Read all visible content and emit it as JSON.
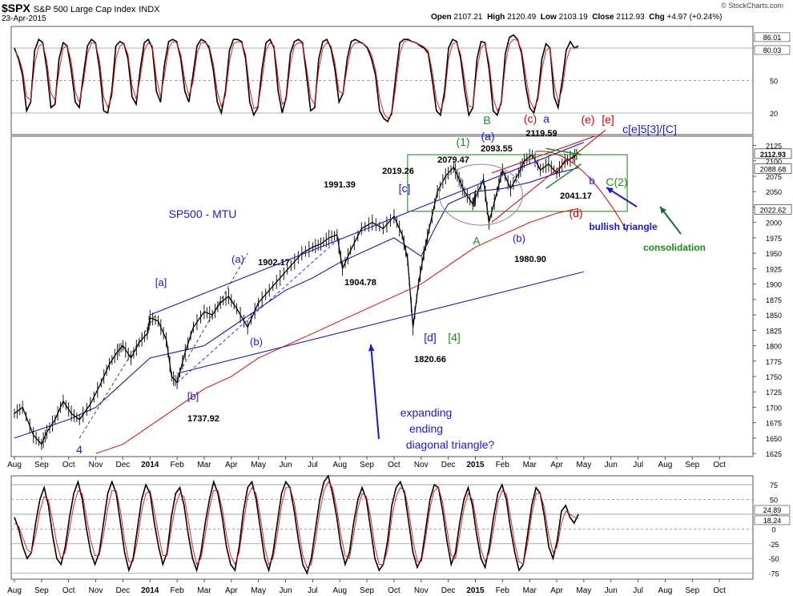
{
  "header": {
    "symbol": "$SPX",
    "description": "S&P 500 Large Cap Index",
    "exchange": "INDX",
    "date": "23-Apr-2015",
    "ohlc": {
      "open": "2107.21",
      "high": "2120.49",
      "low": "2103.19",
      "close": "2112.93",
      "change": "+4.97 (+0.24%)"
    },
    "ohlc_labels": {
      "open": "Open",
      "high": "High",
      "low": "Low",
      "close": "Close",
      "change": "Chg"
    },
    "brand": "© StockCharts.com"
  },
  "colors": {
    "price": "#000000",
    "ma_short": "#1a1aa6",
    "ma_long": "#dd2222",
    "wave_blue": "#1a1acc",
    "wave_green": "#1a8a1a",
    "wave_red": "#cc0000",
    "box": "#2a8a2a",
    "circle": "#888888"
  },
  "chart_data": [
    {
      "type": "line",
      "name": "top-oscillator",
      "ylim": [
        0,
        100
      ],
      "y_ticks": [
        20,
        50,
        80
      ],
      "value_tags": [
        "86.01",
        "80.03"
      ],
      "series": [
        {
          "name": "",
          "color": "#000000",
          "values": [
            80,
            70,
            55,
            22,
            30,
            78,
            88,
            85,
            60,
            25,
            28,
            70,
            85,
            82,
            60,
            30,
            25,
            55,
            82,
            88,
            85,
            60,
            22,
            20,
            40,
            82,
            86,
            84,
            70,
            35,
            28,
            60,
            85,
            88,
            80,
            40,
            30,
            65,
            86,
            88,
            86,
            70,
            40,
            30,
            55,
            82,
            88,
            86,
            80,
            60,
            30,
            20,
            40,
            78,
            88,
            88,
            86,
            70,
            30,
            18,
            25,
            60,
            85,
            88,
            80,
            40,
            20,
            35,
            75,
            86,
            88,
            85,
            55,
            22,
            25,
            70,
            86,
            88,
            80,
            60,
            30,
            38,
            70,
            86,
            88,
            86,
            84,
            80,
            70,
            55,
            22,
            15,
            12,
            20,
            55,
            85,
            88,
            88,
            86,
            85,
            82,
            80,
            75,
            50,
            22,
            18,
            40,
            80,
            88,
            86,
            70,
            40,
            18,
            25,
            70,
            86,
            85,
            60,
            22,
            18,
            30,
            75,
            90,
            92,
            88,
            75,
            45,
            25,
            20,
            35,
            70,
            84,
            80,
            35,
            25,
            50,
            78,
            86,
            80,
            82
          ]
        },
        {
          "name": "",
          "color": "#dd2222",
          "values": [
            78,
            72,
            60,
            35,
            32,
            65,
            82,
            84,
            68,
            38,
            32,
            58,
            80,
            82,
            68,
            40,
            30,
            48,
            75,
            85,
            84,
            68,
            35,
            25,
            35,
            70,
            82,
            84,
            74,
            45,
            33,
            52,
            78,
            85,
            82,
            52,
            35,
            55,
            80,
            86,
            85,
            74,
            50,
            36,
            48,
            75,
            85,
            85,
            82,
            66,
            40,
            26,
            36,
            68,
            84,
            86,
            85,
            74,
            42,
            24,
            26,
            50,
            78,
            85,
            82,
            52,
            28,
            32,
            65,
            82,
            85,
            84,
            62,
            34,
            28,
            60,
            80,
            85,
            82,
            66,
            40,
            38,
            62,
            80,
            85,
            85,
            84,
            81,
            74,
            60,
            34,
            20,
            15,
            18,
            45,
            75,
            86,
            87,
            86,
            85,
            83,
            81,
            77,
            58,
            32,
            22,
            34,
            70,
            84,
            85,
            74,
            50,
            26,
            26,
            60,
            80,
            84,
            66,
            34,
            22,
            28,
            65,
            84,
            88,
            87,
            78,
            55,
            32,
            24,
            32,
            60,
            78,
            80,
            48,
            30,
            42,
            68,
            80,
            80,
            80
          ]
        }
      ]
    },
    {
      "type": "line",
      "name": "price-chart",
      "title": "SP500 - MTU",
      "ylim": [
        1620,
        2140
      ],
      "y_ticks": [
        1625,
        1650,
        1675,
        1700,
        1725,
        1750,
        1775,
        1800,
        1825,
        1850,
        1875,
        1900,
        1925,
        1950,
        1975,
        2000,
        2025,
        2050,
        2075,
        2100,
        2125
      ],
      "value_tags": [
        "2112.93",
        "2088.68",
        "2022.62"
      ],
      "x_ticks": [
        "Aug",
        "Sep",
        "Oct",
        "Nov",
        "Dec",
        "2014",
        "Feb",
        "Mar",
        "Apr",
        "May",
        "Jun",
        "Jul",
        "Aug",
        "Sep",
        "Oct",
        "Nov",
        "Dec",
        "2015",
        "Feb",
        "Mar",
        "Apr",
        "May",
        "Jun",
        "Jul",
        "Aug",
        "Sep",
        "Oct"
      ],
      "x_tick_bold": [
        "2014",
        "2015"
      ],
      "x_range_months": [
        0,
        27
      ],
      "series": [
        {
          "name": "",
          "color": "#000000",
          "x": [
            0,
            0.3,
            0.7,
            1.0,
            1.2,
            1.5,
            1.8,
            2.1,
            2.4,
            2.8,
            3.2,
            3.5,
            3.8,
            4.0,
            4.3,
            4.6,
            4.9,
            5.0,
            5.3,
            5.6,
            5.8,
            6.0,
            6.3,
            6.6,
            7.0,
            7.3,
            7.6,
            7.9,
            8.2,
            8.6,
            9.0,
            9.4,
            9.8,
            10.2,
            10.6,
            11.0,
            11.3,
            11.6,
            11.9,
            12.1,
            12.4,
            12.8,
            13.2,
            13.6,
            14.0,
            14.3,
            14.5,
            14.7,
            14.9,
            15.1,
            15.3,
            15.6,
            15.9,
            16.2,
            16.4,
            16.6,
            16.9,
            17.0,
            17.3,
            17.5,
            17.8,
            18.0,
            18.3,
            18.6,
            18.8,
            19.1,
            19.4,
            19.7,
            20.0,
            20.3,
            20.6,
            20.8
          ],
          "values": [
            1690,
            1700,
            1655,
            1640,
            1660,
            1680,
            1710,
            1690,
            1680,
            1705,
            1740,
            1770,
            1790,
            1800,
            1780,
            1805,
            1820,
            1845,
            1840,
            1810,
            1750,
            1740,
            1790,
            1830,
            1855,
            1850,
            1870,
            1880,
            1860,
            1830,
            1870,
            1890,
            1910,
            1930,
            1950,
            1960,
            1965,
            1975,
            1980,
            1925,
            1955,
            1990,
            2000,
            1990,
            2010,
            1980,
            1940,
            1830,
            1900,
            1950,
            1990,
            2050,
            2075,
            2090,
            2070,
            2050,
            2030,
            2040,
            2070,
            2000,
            2050,
            2085,
            2055,
            2080,
            2100,
            2110,
            2085,
            2095,
            2080,
            2100,
            2105,
            2112.93
          ]
        },
        {
          "name": "",
          "color": "#1a1aa6",
          "x": [
            0,
            1,
            2,
            3,
            4,
            5,
            6,
            7,
            8,
            9,
            10,
            11,
            12,
            13,
            14,
            14.5,
            15,
            15.5,
            16,
            17,
            18,
            19,
            20,
            20.8
          ],
          "values": [
            1650,
            1665,
            1680,
            1700,
            1740,
            1780,
            1790,
            1800,
            1830,
            1860,
            1890,
            1910,
            1935,
            1955,
            1975,
            1960,
            1945,
            1990,
            2030,
            2050,
            2055,
            2065,
            2080,
            2088.68
          ]
        },
        {
          "name": "",
          "color": "#dd2222",
          "x": [
            3,
            4,
            5,
            6,
            7,
            8,
            9,
            10,
            11,
            12,
            13,
            14,
            15,
            16,
            17,
            18,
            19,
            20,
            20.8
          ],
          "values": [
            1625,
            1640,
            1670,
            1700,
            1730,
            1750,
            1780,
            1800,
            1820,
            1840,
            1860,
            1880,
            1900,
            1930,
            1960,
            1980,
            2000,
            2015,
            2022.62
          ]
        }
      ],
      "annotations": [
        {
          "text": "SP500 - MTU",
          "color": "blue"
        },
        {
          "text": "[a]",
          "color": "blue"
        },
        {
          "text": "[b]",
          "color": "blue"
        },
        {
          "text": "1737.92",
          "color": "black"
        },
        {
          "text": "(a)",
          "color": "blue"
        },
        {
          "text": "1902.17",
          "color": "black"
        },
        {
          "text": "(b)",
          "color": "blue"
        },
        {
          "text": "1991.39",
          "color": "black"
        },
        {
          "text": "1904.78",
          "color": "black"
        },
        {
          "text": "2019.26",
          "color": "black"
        },
        {
          "text": "[c]",
          "color": "blue"
        },
        {
          "text": "[d]",
          "color": "blue"
        },
        {
          "text": "[4]",
          "color": "green"
        },
        {
          "text": "1820.66",
          "color": "black"
        },
        {
          "text": "(1)",
          "color": "green"
        },
        {
          "text": "2079.47",
          "color": "black"
        },
        {
          "text": "(a)",
          "color": "blue"
        },
        {
          "text": "2093.55",
          "color": "black"
        },
        {
          "text": "B",
          "color": "green"
        },
        {
          "text": "A",
          "color": "green"
        },
        {
          "text": "(b)",
          "color": "blue"
        },
        {
          "text": "1980.90",
          "color": "black"
        },
        {
          "text": "(c)",
          "color": "red"
        },
        {
          "text": "a",
          "color": "blue"
        },
        {
          "text": "2119.59",
          "color": "black"
        },
        {
          "text": "(e)",
          "color": "red"
        },
        {
          "text": "[e]",
          "color": "red"
        },
        {
          "text": "c[e]5[3]/[C]",
          "color": "blue"
        },
        {
          "text": "b",
          "color": "blue"
        },
        {
          "text": "C(2)",
          "color": "green"
        },
        {
          "text": "2041.17",
          "color": "black"
        },
        {
          "text": "(d)",
          "color": "red"
        },
        {
          "text": "bullish triangle",
          "color": "blue"
        },
        {
          "text": "consolidation",
          "color": "green"
        },
        {
          "text": "4",
          "color": "blue"
        },
        {
          "text": "expanding",
          "color": "blue"
        },
        {
          "text": "ending",
          "color": "blue"
        },
        {
          "text": "diagonal triangle?",
          "color": "blue"
        }
      ]
    },
    {
      "type": "line",
      "name": "bottom-oscillator",
      "ylim": [
        -85,
        90
      ],
      "y_ticks": [
        -75,
        -50,
        -25,
        0,
        25,
        50,
        75
      ],
      "value_tags": [
        "24.89",
        "18.24"
      ],
      "series": [
        {
          "name": "",
          "color": "#000000",
          "values": [
            20,
            0,
            -30,
            -50,
            -40,
            10,
            50,
            70,
            40,
            -10,
            -50,
            -60,
            -30,
            20,
            60,
            80,
            50,
            0,
            -40,
            -60,
            -40,
            10,
            60,
            80,
            60,
            10,
            -40,
            -70,
            -50,
            0,
            50,
            75,
            60,
            10,
            -30,
            -60,
            -40,
            20,
            60,
            70,
            40,
            -10,
            -50,
            -70,
            -40,
            10,
            50,
            80,
            60,
            20,
            -30,
            -60,
            -70,
            -30,
            30,
            70,
            80,
            50,
            0,
            -50,
            -70,
            -40,
            10,
            60,
            80,
            70,
            30,
            -20,
            -60,
            -75,
            -50,
            0,
            50,
            80,
            90,
            60,
            20,
            -30,
            -60,
            -40,
            10,
            50,
            70,
            50,
            0,
            -50,
            -70,
            -60,
            -20,
            40,
            70,
            80,
            60,
            10,
            -40,
            -65,
            -50,
            0,
            50,
            75,
            70,
            30,
            -20,
            -60,
            -40,
            10,
            50,
            70,
            40,
            -10,
            -50,
            -65,
            -30,
            20,
            60,
            75,
            50,
            0,
            -40,
            -70,
            -60,
            -10,
            40,
            70,
            60,
            20,
            -30,
            -50,
            -20,
            30,
            40,
            20,
            10,
            25
          ]
        },
        {
          "name": "",
          "color": "#dd2222",
          "values": [
            10,
            5,
            -15,
            -35,
            -40,
            -10,
            30,
            55,
            50,
            15,
            -25,
            -50,
            -40,
            0,
            40,
            65,
            60,
            20,
            -20,
            -45,
            -45,
            -10,
            35,
            65,
            65,
            30,
            -20,
            -55,
            -55,
            -20,
            30,
            60,
            65,
            30,
            -10,
            -45,
            -45,
            0,
            40,
            60,
            55,
            15,
            -30,
            -60,
            -50,
            -10,
            35,
            65,
            65,
            35,
            -10,
            -45,
            -60,
            -40,
            10,
            55,
            70,
            60,
            20,
            -30,
            -60,
            -50,
            -10,
            40,
            70,
            70,
            45,
            0,
            -45,
            -65,
            -60,
            -20,
            30,
            65,
            80,
            70,
            35,
            -10,
            -45,
            -50,
            -10,
            35,
            60,
            55,
            20,
            -30,
            -60,
            -60,
            -35,
            20,
            55,
            70,
            65,
            30,
            -20,
            -55,
            -55,
            -15,
            35,
            65,
            70,
            45,
            0,
            -45,
            -50,
            -10,
            35,
            60,
            50,
            10,
            -35,
            -55,
            -40,
            0,
            45,
            65,
            60,
            20,
            -25,
            -55,
            -60,
            -25,
            25,
            60,
            60,
            35,
            -10,
            -40,
            -30,
            10,
            30,
            25,
            20,
            18
          ]
        }
      ]
    }
  ]
}
